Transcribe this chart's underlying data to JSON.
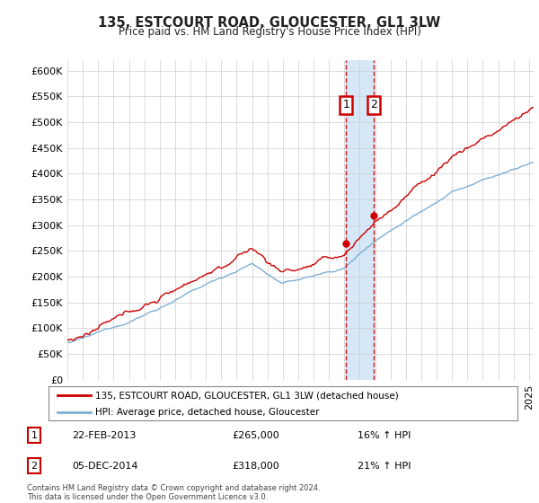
{
  "title": "135, ESTCOURT ROAD, GLOUCESTER, GL1 3LW",
  "subtitle": "Price paid vs. HM Land Registry's House Price Index (HPI)",
  "legend_line1": "135, ESTCOURT ROAD, GLOUCESTER, GL1 3LW (detached house)",
  "legend_line2": "HPI: Average price, detached house, Gloucester",
  "transaction1_date": "22-FEB-2013",
  "transaction1_price_label": "£265,000",
  "transaction1_hpi": "16% ↑ HPI",
  "transaction1_price": 265000,
  "transaction1_year": 2013.12,
  "transaction2_date": "05-DEC-2014",
  "transaction2_price_label": "£318,000",
  "transaction2_hpi": "21% ↑ HPI",
  "transaction2_price": 318000,
  "transaction2_year": 2014.92,
  "footer": "Contains HM Land Registry data © Crown copyright and database right 2024.\nThis data is licensed under the Open Government Licence v3.0.",
  "hpi_color": "#7bafd4",
  "price_color": "#cc0000",
  "highlight_color": "#d6e8f7",
  "vline_color": "#cc0000",
  "ylim_min": 0,
  "ylim_max": 620000,
  "ytick_step": 50000,
  "xlim_min": 1995,
  "xlim_max": 2025.3
}
